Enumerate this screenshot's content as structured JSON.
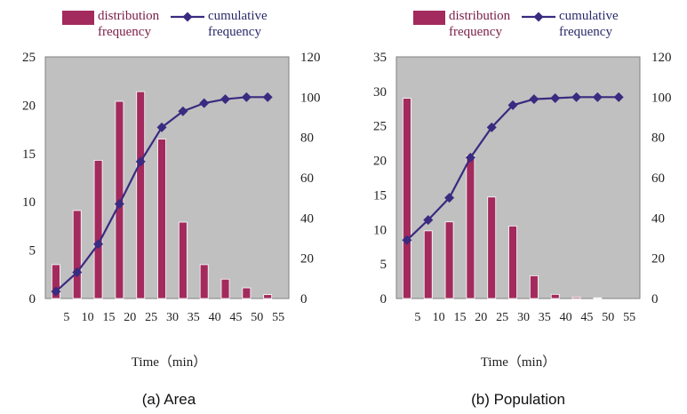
{
  "chart_data": [
    {
      "type": "bar",
      "caption": "(a) Area",
      "xlabel": "Time（min）",
      "x_ticks": [
        "5",
        "10",
        "15",
        "20",
        "25",
        "30",
        "35",
        "40",
        "45",
        "50",
        "55"
      ],
      "y_left": {
        "lim": [
          0,
          25
        ],
        "ticks": [
          0,
          5,
          10,
          15,
          20,
          25
        ]
      },
      "y_right": {
        "lim": [
          0,
          120
        ],
        "ticks": [
          0,
          20,
          40,
          60,
          80,
          100,
          120
        ]
      },
      "grid": false,
      "legend_position": "top",
      "series": [
        {
          "name": "distribution frequency",
          "type": "bar",
          "axis": "left",
          "color": "#a32a5c",
          "values": [
            3.5,
            9.1,
            14.3,
            20.4,
            21.4,
            16.5,
            7.9,
            3.5,
            2.0,
            1.1,
            0.4
          ]
        },
        {
          "name": "cumulative frequency",
          "type": "line",
          "axis": "right",
          "color": "#3a2a80",
          "values": [
            3.5,
            13,
            27,
            47,
            68,
            85,
            93,
            97,
            99,
            100,
            100
          ]
        }
      ]
    },
    {
      "type": "bar",
      "caption": "(b) Population",
      "xlabel": "Time（min）",
      "x_ticks": [
        "5",
        "10",
        "15",
        "20",
        "25",
        "30",
        "35",
        "40",
        "45",
        "50",
        "55"
      ],
      "y_left": {
        "lim": [
          0,
          35
        ],
        "ticks": [
          0,
          5,
          10,
          15,
          20,
          25,
          30,
          35
        ]
      },
      "y_right": {
        "lim": [
          0,
          120
        ],
        "ticks": [
          0,
          20,
          40,
          60,
          80,
          100,
          120
        ]
      },
      "grid": false,
      "legend_position": "top",
      "series": [
        {
          "name": "distribution frequency",
          "type": "bar",
          "axis": "left",
          "color": "#a32a5c",
          "values": [
            29,
            9.8,
            11.1,
            20.7,
            14.7,
            10.5,
            3.3,
            0.6,
            0.2,
            0.1,
            0
          ]
        },
        {
          "name": "cumulative frequency",
          "type": "line",
          "axis": "right",
          "color": "#3a2a80",
          "values": [
            29,
            39,
            50,
            70,
            85,
            96,
            99,
            99.5,
            100,
            100,
            100
          ]
        }
      ]
    }
  ]
}
